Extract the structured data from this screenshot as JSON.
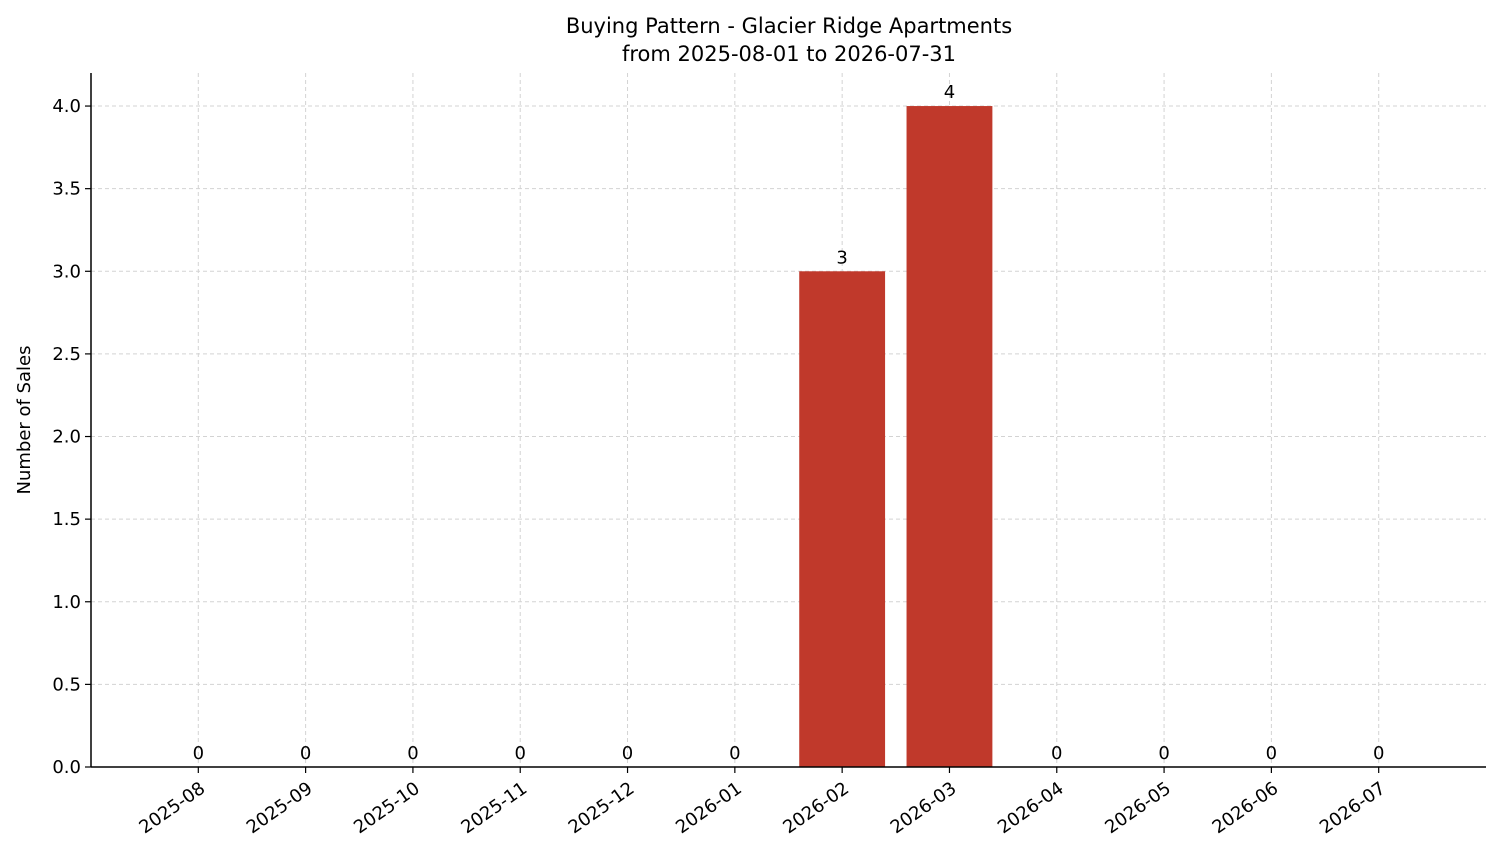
{
  "chart_data": {
    "type": "bar",
    "title": "Buying Pattern - Glacier Ridge Apartments",
    "subtitle": "from 2025-08-01 to 2026-07-31",
    "y_label": "Number of Sales",
    "categories": [
      "2025-08",
      "2025-09",
      "2025-10",
      "2025-11",
      "2025-12",
      "2026-01",
      "2026-02",
      "2026-03",
      "2026-04",
      "2026-05",
      "2026-06",
      "2026-07"
    ],
    "values": [
      0,
      0,
      0,
      0,
      0,
      0,
      3,
      4,
      0,
      0,
      0,
      0
    ],
    "color": "#c0392b",
    "ylim": [
      0,
      4.2
    ],
    "yticks": [
      {
        "value": 0,
        "label": "0.0"
      },
      {
        "value": 0.5,
        "label": "0.5"
      },
      {
        "value": 1,
        "label": "1.0"
      },
      {
        "value": 1.5,
        "label": "1.5"
      },
      {
        "value": 2,
        "label": "2.0"
      },
      {
        "value": 2.5,
        "label": "2.5"
      },
      {
        "value": 3,
        "label": "3.0"
      },
      {
        "value": 3.5,
        "label": "3.5"
      },
      {
        "value": 4,
        "label": "4.0"
      }
    ],
    "grid": true
  }
}
